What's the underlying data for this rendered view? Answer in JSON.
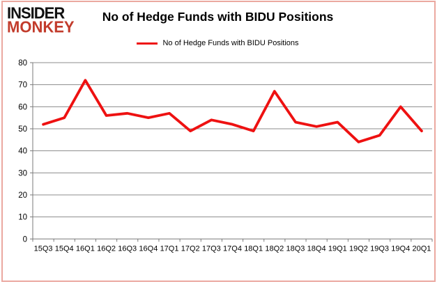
{
  "logo": {
    "line1": "INSIDER",
    "line2": "MONKEY"
  },
  "header": {
    "title": "No of Hedge Funds with BIDU Positions"
  },
  "legend": {
    "label": "No of Hedge Funds with BIDU Positions"
  },
  "chart_data": {
    "type": "line",
    "title": "No of Hedge Funds with BIDU Positions",
    "categories": [
      "15Q3",
      "15Q4",
      "16Q1",
      "16Q2",
      "16Q3",
      "16Q4",
      "17Q1",
      "17Q2",
      "17Q3",
      "17Q4",
      "18Q1",
      "18Q2",
      "18Q3",
      "18Q4",
      "19Q1",
      "19Q2",
      "19Q3",
      "19Q4",
      "20Q1"
    ],
    "series": [
      {
        "name": "No of Hedge Funds with BIDU Positions",
        "color": "#ee1111",
        "values": [
          52,
          55,
          72,
          56,
          57,
          55,
          57,
          49,
          54,
          52,
          49,
          67,
          53,
          51,
          53,
          44,
          47,
          60,
          49
        ]
      }
    ],
    "xlabel": "",
    "ylabel": "",
    "ylim": [
      0,
      80
    ],
    "ytick_step": 10,
    "grid": true,
    "legend_position": "top"
  },
  "colors": {
    "line": "#ee1111",
    "grid": "#8c8c8c",
    "axis": "#7a7a7a",
    "tick_label": "#000000",
    "frame_border": "#eba8a0",
    "logo_black": "#111111",
    "logo_red": "#c23b2b"
  }
}
